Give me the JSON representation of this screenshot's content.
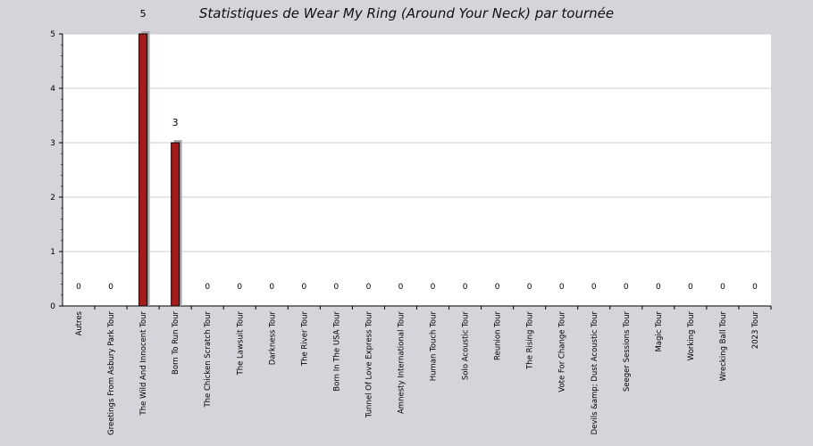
{
  "chart_data": {
    "type": "bar",
    "title": "Statistiques de Wear My Ring (Around Your Neck) par tournée",
    "xlabel": "",
    "ylabel": "",
    "ylim": [
      0,
      5
    ],
    "yticks": [
      0,
      1,
      2,
      3,
      4,
      5
    ],
    "grid": true,
    "categories": [
      "Autres",
      "Greetings From Asbury Park Tour",
      "The Wild And Innocent Tour",
      "Born To Run Tour",
      "The Chicken Scratch Tour",
      "The Lawsuit Tour",
      "Darkness Tour",
      "The River Tour",
      "Born In The USA Tour",
      "Tunnel Of Love Express Tour",
      "Amnesty International Tour",
      "Human Touch Tour",
      "Solo Acoustic Tour",
      "Reunion Tour",
      "The Rising Tour",
      "Vote For Change Tour",
      "Devils &amp; Dust Acoustic Tour",
      "Seeger Sessions Tour",
      "Magic Tour",
      "Working Tour",
      "Wrecking Ball Tour",
      "2023 Tour"
    ],
    "values": [
      0,
      0,
      5,
      3,
      0,
      0,
      0,
      0,
      0,
      0,
      0,
      0,
      0,
      0,
      0,
      0,
      0,
      0,
      0,
      0,
      0,
      0
    ],
    "colors": {
      "bar": "#a51a1a",
      "bar_shadow": "#a9a7ad",
      "plot_bg": "#ffffff",
      "page_bg": "#d5d4da",
      "grid": "#cfcfcf"
    }
  }
}
